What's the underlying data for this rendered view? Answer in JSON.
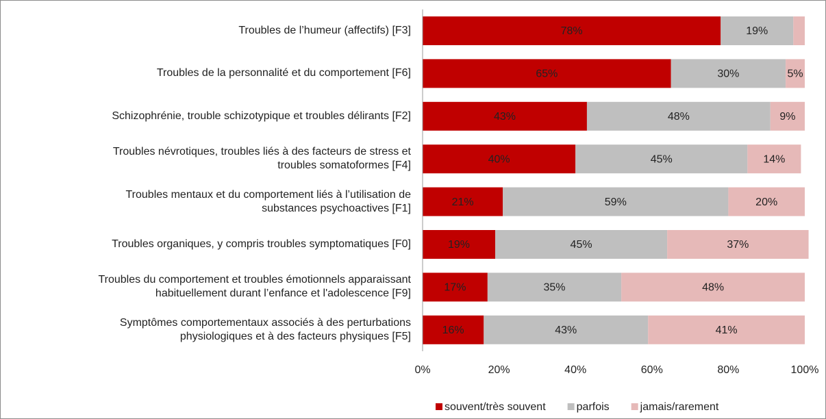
{
  "chart_data": {
    "type": "stacked-barh",
    "categories": [
      "Troubles de l’humeur (affectifs) [F3]",
      "Troubles de la personnalité et du comportement [F6]",
      "Schizophrénie, trouble schizotypique et troubles délirants [F2]",
      "Troubles névrotiques, troubles liés à des facteurs de stress et\ntroubles somatoformes [F4]",
      "Troubles mentaux et du comportement liés à l’utilisation de\nsubstances psychoactives [F1]",
      "Troubles organiques, y compris troubles symptomatiques [F0]",
      "Troubles du comportement et troubles émotionnels apparaissant\nhabituellement durant l’enfance et l'adolescence [F9]",
      "Symptômes comportementaux associés à des perturbations\nphysiologiques et à des facteurs physiques [F5]"
    ],
    "series": [
      {
        "name": "souvent/très souvent",
        "color": "#c00000",
        "values": [
          78,
          65,
          43,
          40,
          21,
          19,
          17,
          16
        ],
        "value_labels": [
          "78%",
          "65%",
          "43%",
          "40%",
          "21%",
          "19%",
          "17%",
          "16%"
        ]
      },
      {
        "name": "parfois",
        "color": "#bfbfbf",
        "values": [
          19,
          30,
          48,
          45,
          59,
          45,
          35,
          43
        ],
        "value_labels": [
          "19%",
          "30%",
          "48%",
          "45%",
          "59%",
          "45%",
          "35%",
          "43%"
        ]
      },
      {
        "name": "jamais/rarement",
        "color": "#e6b9b8",
        "values": [
          3,
          5,
          9,
          14,
          20,
          37,
          48,
          41
        ],
        "value_labels": [
          null,
          "5%",
          "9%",
          "14%",
          "20%",
          "37%",
          "48%",
          "41%"
        ]
      }
    ],
    "xlim": [
      0,
      100
    ],
    "xticks": [
      {
        "value": 0,
        "label": "0%"
      },
      {
        "value": 20,
        "label": "20%"
      },
      {
        "value": 40,
        "label": "40%"
      },
      {
        "value": 60,
        "label": "60%"
      },
      {
        "value": 80,
        "label": "80%"
      },
      {
        "value": 100,
        "label": "100%"
      }
    ],
    "legend": "bottom"
  }
}
